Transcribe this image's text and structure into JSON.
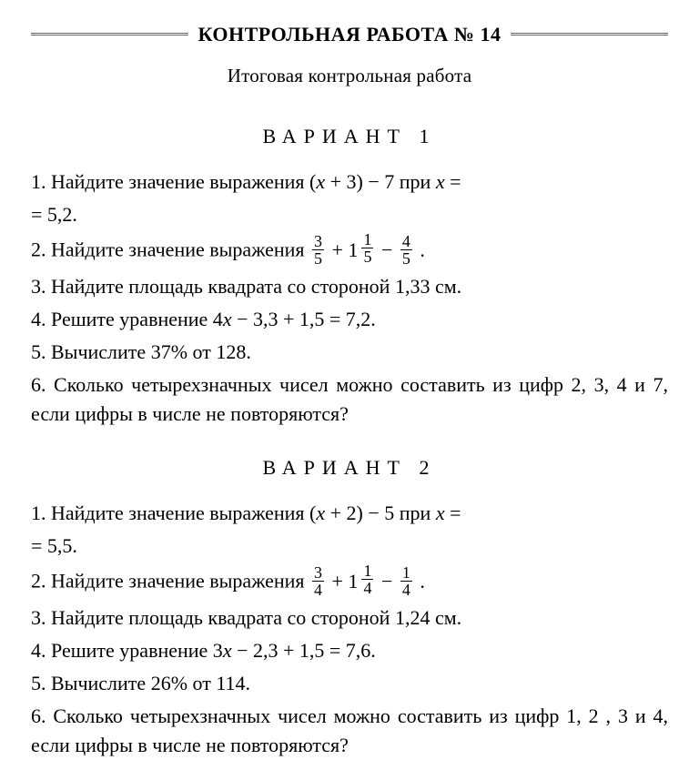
{
  "header": {
    "title": "КОНТРОЛЬНАЯ РАБОТА № 14",
    "subtitle": "Итоговая контрольная работа"
  },
  "variants": [
    {
      "heading": "ВАРИАНТ 1",
      "problems": {
        "p1_prefix": "1. Найдите значение выражения (",
        "p1_var": "x",
        "p1_mid": " + 3) − 7 при ",
        "p1_var2": "x",
        "p1_eq": " =",
        "p1_cont": "= 5,2.",
        "p2_prefix": "2. Найдите значение выражения ",
        "p2_f1_num": "3",
        "p2_f1_den": "5",
        "p2_plus1": " + ",
        "p2_m_whole": "1",
        "p2_m_num": "1",
        "p2_m_den": "5",
        "p2_minus": " − ",
        "p2_f2_num": "4",
        "p2_f2_den": "5",
        "p2_end": " .",
        "p3": "3. Найдите площадь квадрата со стороной 1,33 см.",
        "p4_prefix": "4. Решите уравнение 4",
        "p4_var": "x",
        "p4_tail": " − 3,3 + 1,5 = 7,2.",
        "p5": "5. Вычислите 37% от 128.",
        "p6": "6. Сколько четырехзначных чисел можно составить из цифр 2, 3, 4 и 7, если цифры в числе не повторя­ются?"
      }
    },
    {
      "heading": "ВАРИАНТ 2",
      "problems": {
        "p1_prefix": "1. Найдите значение выражения (",
        "p1_var": "x",
        "p1_mid": " + 2) − 5 при ",
        "p1_var2": "x",
        "p1_eq": " =",
        "p1_cont": "= 5,5.",
        "p2_prefix": "2. Найдите значение выражения ",
        "p2_f1_num": "3",
        "p2_f1_den": "4",
        "p2_plus1": " + ",
        "p2_m_whole": "1",
        "p2_m_num": "1",
        "p2_m_den": "4",
        "p2_minus": " − ",
        "p2_f2_num": "1",
        "p2_f2_den": "4",
        "p2_end": " .",
        "p3": "3. Найдите площадь квадрата со стороной 1,24 см.",
        "p4_prefix": "4. Решите уравнение 3",
        "p4_var": "x",
        "p4_tail": " − 2,3 + 1,5 = 7,6.",
        "p5": "5. Вычислите 26% от 114.",
        "p6": "6. Сколько четырехзначных чисел можно составить из цифр  1, 2 , 3 и 4, если цифры в числе не повто­ряются?"
      }
    }
  ]
}
